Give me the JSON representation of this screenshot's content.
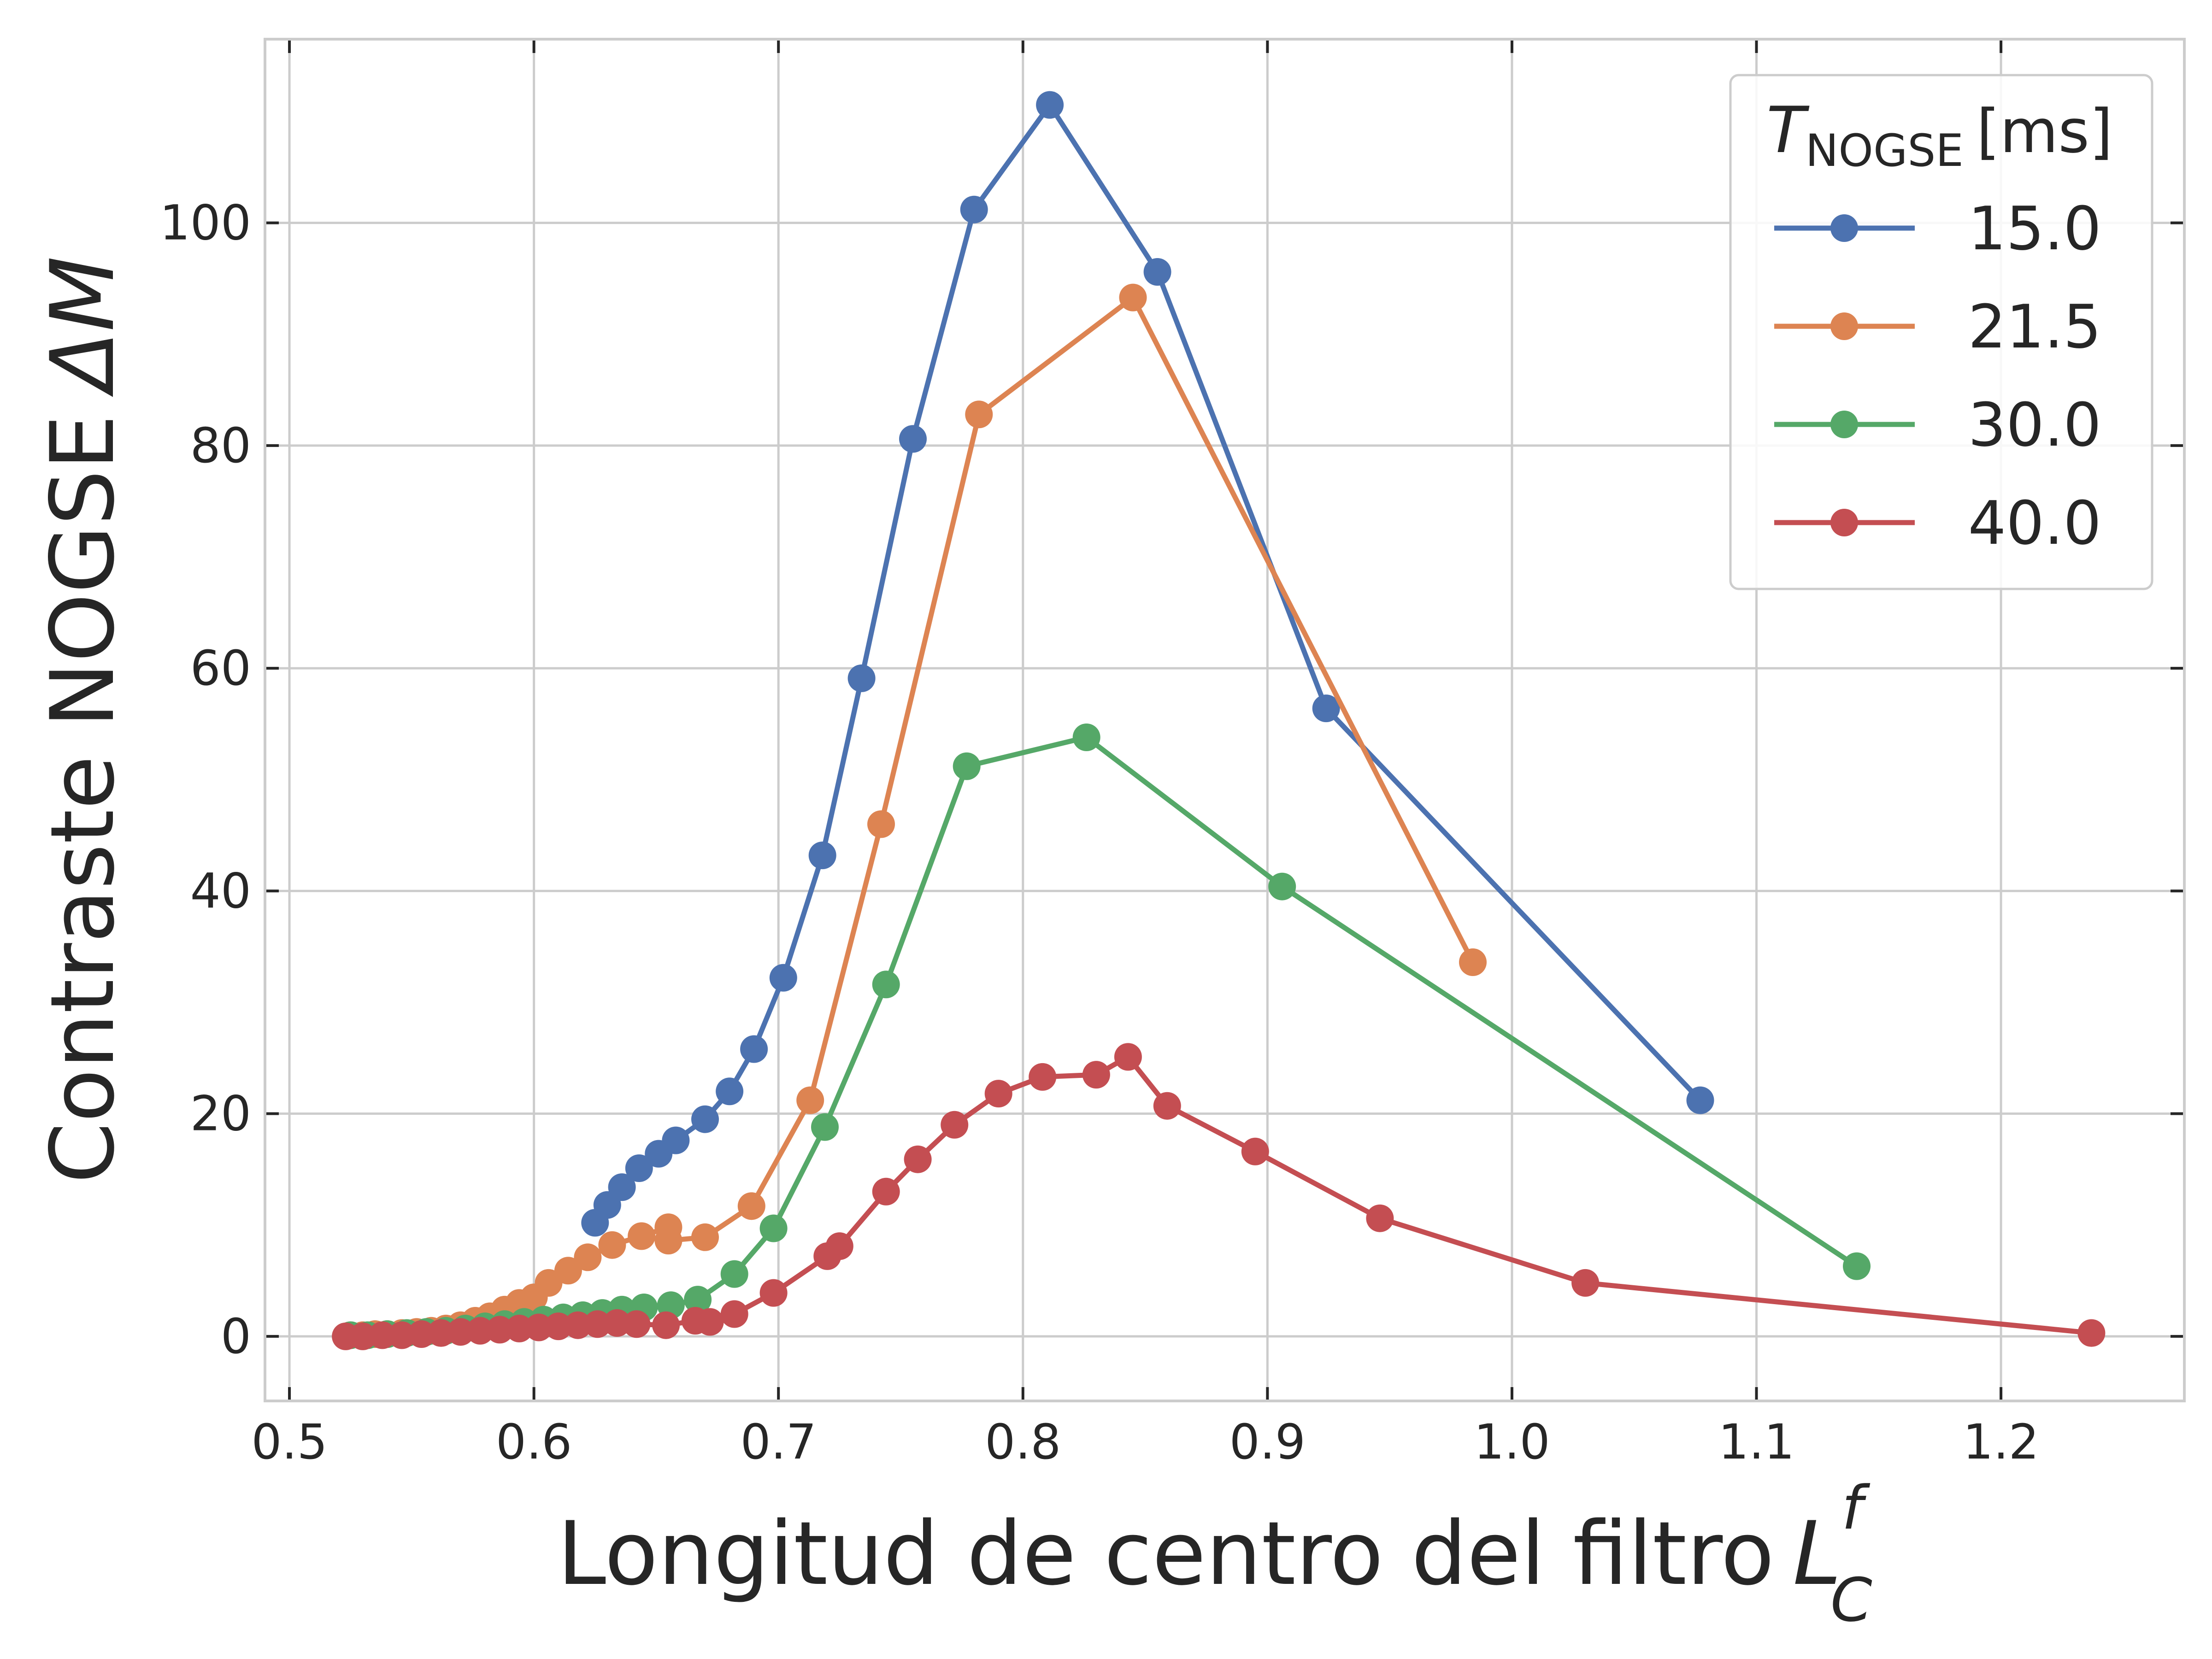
{
  "chart_data": {
    "type": "line",
    "xlabel": "Longitud de centro del filtro",
    "xlabel_symbol": {
      "base": "L",
      "sub": "C",
      "sup": "f"
    },
    "ylabel": "Contraste NOGSE",
    "ylabel_symbol": "ΔM",
    "xlim": [
      0.49,
      1.275
    ],
    "ylim": [
      -5.8,
      116.5
    ],
    "xticks": [
      0.5,
      0.6,
      0.7,
      0.8,
      0.9,
      1.0,
      1.1,
      1.2
    ],
    "xtick_labels": [
      "0.5",
      "0.6",
      "0.7",
      "0.8",
      "0.9",
      "1.0",
      "1.1",
      "1.2"
    ],
    "yticks": [
      0,
      20,
      40,
      60,
      80,
      100
    ],
    "ytick_labels": [
      "0",
      "20",
      "40",
      "60",
      "80",
      "100"
    ],
    "grid": true,
    "legend": {
      "position": "top-right",
      "title_symbol": "T",
      "title_sub": "NOGSE",
      "title_unit": "[ms]"
    },
    "series": [
      {
        "name": "15.0",
        "color": "#4c72b0",
        "x": [
          0.625,
          0.63,
          0.636,
          0.643,
          0.651,
          0.658,
          0.67,
          0.68,
          0.69,
          0.702,
          0.718,
          0.734,
          0.755,
          0.78,
          0.811,
          0.855,
          0.924,
          1.077
        ],
        "y": [
          10.2,
          11.8,
          13.4,
          15.1,
          16.4,
          17.6,
          19.5,
          22.0,
          25.8,
          32.2,
          43.2,
          59.1,
          80.6,
          101.2,
          110.6,
          95.6,
          56.4,
          21.2
        ]
      },
      {
        "name": "21.5",
        "color": "#dd8452",
        "x": [
          0.525,
          0.53,
          0.535,
          0.54,
          0.546,
          0.552,
          0.558,
          0.564,
          0.57,
          0.576,
          0.582,
          0.588,
          0.594,
          0.6,
          0.606,
          0.614,
          0.622,
          0.632,
          0.644,
          0.655,
          0.655,
          0.67,
          0.689,
          0.713,
          0.742,
          0.782,
          0.845,
          0.984
        ],
        "y": [
          0.1,
          0.1,
          0.2,
          0.2,
          0.3,
          0.4,
          0.5,
          0.7,
          1.0,
          1.4,
          1.8,
          2.4,
          3.0,
          3.5,
          4.8,
          5.9,
          7.1,
          8.2,
          9.0,
          9.8,
          8.6,
          8.9,
          11.7,
          21.2,
          46.0,
          82.8,
          93.3,
          33.6
        ]
      },
      {
        "name": "30.0",
        "color": "#55a868",
        "x": [
          0.525,
          0.532,
          0.54,
          0.548,
          0.556,
          0.564,
          0.572,
          0.58,
          0.588,
          0.596,
          0.604,
          0.612,
          0.62,
          0.628,
          0.636,
          0.645,
          0.656,
          0.667,
          0.682,
          0.698,
          0.719,
          0.744,
          0.777,
          0.826,
          0.906,
          1.141
        ],
        "y": [
          0.1,
          0.1,
          0.2,
          0.3,
          0.4,
          0.5,
          0.7,
          0.9,
          1.1,
          1.3,
          1.5,
          1.7,
          1.9,
          2.1,
          2.4,
          2.6,
          2.8,
          3.3,
          5.6,
          9.7,
          18.8,
          31.6,
          51.2,
          53.8,
          40.4,
          6.3
        ]
      },
      {
        "name": "40.0",
        "color": "#c44e52",
        "x": [
          0.523,
          0.53,
          0.538,
          0.546,
          0.554,
          0.562,
          0.57,
          0.578,
          0.586,
          0.594,
          0.602,
          0.61,
          0.618,
          0.626,
          0.634,
          0.642,
          0.654,
          0.666,
          0.672,
          0.682,
          0.698,
          0.72,
          0.725,
          0.744,
          0.757,
          0.772,
          0.79,
          0.808,
          0.83,
          0.843,
          0.859,
          0.895,
          0.946,
          1.03,
          1.237
        ],
        "y": [
          0.0,
          0.0,
          0.1,
          0.1,
          0.2,
          0.3,
          0.4,
          0.5,
          0.6,
          0.7,
          0.8,
          0.9,
          1.0,
          1.1,
          1.2,
          1.1,
          1.0,
          1.4,
          1.3,
          2.0,
          3.9,
          7.2,
          8.1,
          13.0,
          15.9,
          19.0,
          21.8,
          23.3,
          23.5,
          25.1,
          20.7,
          16.6,
          10.6,
          4.8,
          0.3
        ]
      }
    ]
  }
}
